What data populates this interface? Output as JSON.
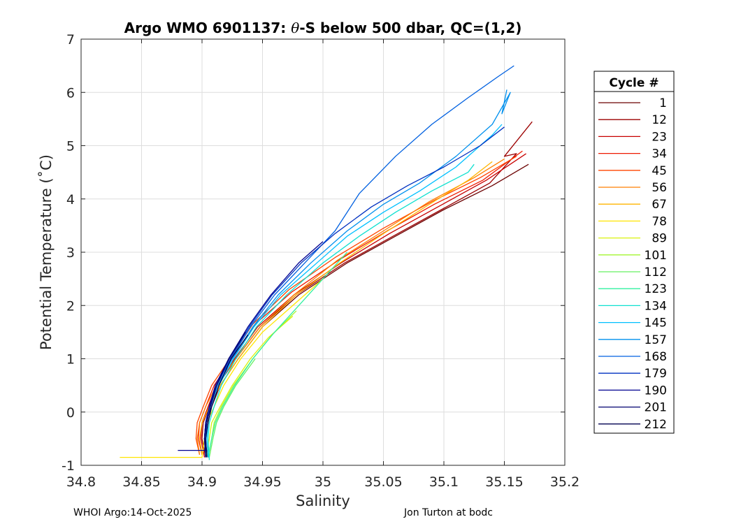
{
  "chart_data": {
    "type": "line",
    "title_prefix": "Argo WMO 6901137: ",
    "title_theta": "θ",
    "title_suffix": "-S below 500 dbar,  QC=(1,2)",
    "xlabel": "Salinity",
    "ylabel": "Potential Temperature (˚C)",
    "xlim": [
      34.8,
      35.2
    ],
    "ylim": [
      -1,
      7
    ],
    "xticks": [
      "34.8",
      "34.85",
      "34.9",
      "34.95",
      "35",
      "35.05",
      "35.1",
      "35.15",
      "35.2"
    ],
    "yticks": [
      "-1",
      "0",
      "1",
      "2",
      "3",
      "4",
      "5",
      "6",
      "7"
    ],
    "grid": true,
    "legend_title": "Cycle #",
    "legend_position": "right",
    "legend": [
      {
        "label": "1",
        "color": "#6b0000"
      },
      {
        "label": "12",
        "color": "#9c0000"
      },
      {
        "label": "23",
        "color": "#c80000"
      },
      {
        "label": "34",
        "color": "#ee1a00"
      },
      {
        "label": "45",
        "color": "#ff4400"
      },
      {
        "label": "56",
        "color": "#ff7f00"
      },
      {
        "label": "67",
        "color": "#ffb400"
      },
      {
        "label": "78",
        "color": "#ffe600"
      },
      {
        "label": "89",
        "color": "#d9f20d"
      },
      {
        "label": "101",
        "color": "#a3f530"
      },
      {
        "label": "112",
        "color": "#66f060"
      },
      {
        "label": "123",
        "color": "#30f0a0"
      },
      {
        "label": "134",
        "color": "#10e0d0"
      },
      {
        "label": "145",
        "color": "#00c0ff"
      },
      {
        "label": "157",
        "color": "#0090ee"
      },
      {
        "label": "168",
        "color": "#0060e0"
      },
      {
        "label": "179",
        "color": "#0030c0"
      },
      {
        "label": "190",
        "color": "#000090"
      },
      {
        "label": "201",
        "color": "#000070"
      },
      {
        "label": "212",
        "color": "#000050"
      }
    ],
    "series": [
      {
        "name": "1",
        "color": "#6b0000",
        "x": [
          34.905,
          34.902,
          34.903,
          34.908,
          34.915,
          34.93,
          34.95,
          34.98,
          35.02,
          35.06,
          35.1,
          35.14,
          35.17
        ],
        "y": [
          -0.85,
          -0.5,
          -0.2,
          0.1,
          0.5,
          1.0,
          1.6,
          2.2,
          2.8,
          3.3,
          3.8,
          4.25,
          4.65
        ]
      },
      {
        "name": "12",
        "color": "#9c0000",
        "x": [
          34.903,
          34.9,
          34.901,
          34.906,
          34.913,
          34.928,
          34.948,
          34.978,
          35.018,
          35.058,
          35.098,
          35.138,
          35.16,
          35.15,
          35.173
        ],
        "y": [
          -0.85,
          -0.5,
          -0.2,
          0.1,
          0.5,
          1.0,
          1.6,
          2.2,
          2.8,
          3.3,
          3.8,
          4.3,
          4.85,
          4.8,
          5.45
        ]
      },
      {
        "name": "23",
        "color": "#c80000",
        "x": [
          34.902,
          34.899,
          34.9,
          34.905,
          34.912,
          34.927,
          34.946,
          34.976,
          35.015,
          35.055,
          35.095,
          35.135,
          35.168
        ],
        "y": [
          -0.85,
          -0.5,
          -0.2,
          0.1,
          0.5,
          1.0,
          1.6,
          2.2,
          2.8,
          3.35,
          3.85,
          4.35,
          4.85
        ]
      },
      {
        "name": "34",
        "color": "#ee1a00",
        "x": [
          34.9,
          34.897,
          34.898,
          34.903,
          34.91,
          34.925,
          34.944,
          34.974,
          35.013,
          35.053,
          35.092,
          35.132,
          35.165
        ],
        "y": [
          -0.8,
          -0.5,
          -0.2,
          0.1,
          0.5,
          1.0,
          1.65,
          2.25,
          2.85,
          3.4,
          3.9,
          4.35,
          4.9
        ]
      },
      {
        "name": "45",
        "color": "#ff4400",
        "x": [
          34.898,
          34.895,
          34.896,
          34.901,
          34.908,
          34.923,
          34.942,
          34.972,
          35.01,
          35.05,
          35.09,
          35.13,
          35.16
        ],
        "y": [
          -0.8,
          -0.5,
          -0.2,
          0.1,
          0.5,
          1.0,
          1.65,
          2.3,
          2.9,
          3.45,
          3.95,
          4.4,
          4.8
        ]
      },
      {
        "name": "56",
        "color": "#ff7f00",
        "x": [
          34.898,
          34.896,
          34.898,
          34.903,
          34.912,
          34.928,
          34.948,
          34.976,
          35.012,
          35.05,
          35.088,
          35.125,
          35.15
        ],
        "y": [
          -0.8,
          -0.5,
          -0.2,
          0.1,
          0.5,
          1.0,
          1.6,
          2.2,
          2.85,
          3.4,
          3.95,
          4.4,
          4.75
        ]
      },
      {
        "name": "67",
        "color": "#ffb400",
        "x": [
          34.9,
          34.898,
          34.9,
          34.906,
          34.915,
          34.93,
          34.95,
          34.978,
          35.014,
          35.05,
          35.088,
          35.12,
          35.14
        ],
        "y": [
          -0.8,
          -0.5,
          -0.2,
          0.1,
          0.5,
          1.0,
          1.6,
          2.2,
          2.8,
          3.35,
          3.9,
          4.35,
          4.7
        ]
      },
      {
        "name": "78",
        "color": "#ffe600",
        "x": [
          34.832,
          34.9,
          34.902,
          34.904,
          34.91,
          34.918,
          34.932,
          34.95,
          34.975,
          35.0
        ],
        "y": [
          -0.85,
          -0.85,
          -0.5,
          -0.2,
          0.1,
          0.5,
          1.0,
          1.5,
          2.0,
          2.5
        ]
      },
      {
        "name": "89",
        "color": "#d9f20d",
        "x": [
          34.904,
          34.906,
          34.908,
          34.915,
          34.925,
          34.94,
          34.955,
          34.975
        ],
        "y": [
          -0.85,
          -0.5,
          -0.2,
          0.1,
          0.5,
          1.0,
          1.4,
          1.8
        ]
      },
      {
        "name": "101",
        "color": "#a3f530",
        "x": [
          34.905,
          34.908,
          34.91,
          34.916,
          34.926,
          34.942,
          34.958,
          34.978
        ],
        "y": [
          -0.85,
          -0.5,
          -0.2,
          0.1,
          0.5,
          1.0,
          1.45,
          1.9
        ]
      },
      {
        "name": "112",
        "color": "#66f060",
        "x": [
          34.906,
          34.909,
          34.912,
          34.918,
          34.928,
          34.944
        ],
        "y": [
          -0.85,
          -0.5,
          -0.2,
          0.1,
          0.5,
          1.0
        ]
      },
      {
        "name": "123",
        "color": "#30f0a0",
        "x": [
          34.905,
          34.908,
          34.911,
          34.917,
          34.927,
          34.942,
          34.96,
          34.98,
          35.0,
          35.02
        ],
        "y": [
          -0.85,
          -0.5,
          -0.2,
          0.1,
          0.5,
          1.0,
          1.5,
          2.0,
          2.5,
          3.0
        ]
      },
      {
        "name": "134",
        "color": "#10e0d0",
        "x": [
          34.906,
          34.905,
          34.906,
          34.91,
          34.916,
          34.928,
          34.945,
          34.97,
          35.0,
          35.03,
          35.06,
          35.09,
          35.12,
          35.125
        ],
        "y": [
          -0.9,
          -0.5,
          -0.2,
          0.1,
          0.5,
          1.0,
          1.6,
          2.2,
          2.8,
          3.3,
          3.75,
          4.15,
          4.5,
          4.65
        ]
      },
      {
        "name": "145",
        "color": "#00c0ff",
        "x": [
          34.905,
          34.904,
          34.905,
          34.908,
          34.914,
          34.926,
          34.943,
          34.965,
          34.995,
          35.02,
          35.05,
          35.08,
          35.11,
          35.14,
          35.148
        ],
        "y": [
          -0.85,
          -0.5,
          -0.2,
          0.1,
          0.5,
          1.0,
          1.6,
          2.2,
          2.8,
          3.3,
          3.75,
          4.15,
          4.6,
          5.2,
          5.4
        ]
      },
      {
        "name": "157",
        "color": "#0090ee",
        "x": [
          34.904,
          34.903,
          34.904,
          34.907,
          34.913,
          34.925,
          34.942,
          34.963,
          34.99,
          35.02,
          35.05,
          35.08,
          35.11,
          35.14,
          35.155,
          35.148,
          35.152
        ],
        "y": [
          -0.85,
          -0.5,
          -0.2,
          0.1,
          0.5,
          1.0,
          1.6,
          2.2,
          2.8,
          3.4,
          3.9,
          4.3,
          4.8,
          5.4,
          6.0,
          5.6,
          6.05
        ]
      },
      {
        "name": "168",
        "color": "#0060e0",
        "x": [
          34.903,
          34.902,
          34.903,
          34.906,
          34.912,
          34.924,
          34.94,
          34.96,
          34.985,
          35.01,
          35.03,
          35.06,
          35.09,
          35.12,
          35.145,
          35.158
        ],
        "y": [
          -0.85,
          -0.5,
          -0.2,
          0.1,
          0.5,
          1.0,
          1.6,
          2.2,
          2.8,
          3.4,
          4.1,
          4.8,
          5.4,
          5.9,
          6.3,
          6.5
        ]
      },
      {
        "name": "179",
        "color": "#0030c0",
        "x": [
          34.903,
          34.902,
          34.903,
          34.906,
          34.912,
          34.923,
          34.939,
          34.958,
          34.982,
          35.01,
          35.04,
          35.07,
          35.1,
          35.13,
          35.15
        ],
        "y": [
          -0.85,
          -0.5,
          -0.2,
          0.1,
          0.5,
          1.0,
          1.6,
          2.2,
          2.8,
          3.35,
          3.85,
          4.25,
          4.6,
          5.0,
          5.35
        ]
      },
      {
        "name": "190",
        "color": "#000090",
        "x": [
          34.88,
          34.903,
          34.902,
          34.903,
          34.906,
          34.911,
          34.922,
          34.938,
          34.957,
          34.98,
          35.0
        ],
        "y": [
          -0.72,
          -0.72,
          -0.5,
          -0.2,
          0.1,
          0.5,
          1.0,
          1.6,
          2.2,
          2.8,
          3.2
        ]
      },
      {
        "name": "201",
        "color": "#000070",
        "x": [
          34.903,
          34.902,
          34.904,
          34.907,
          34.912,
          34.922,
          34.936
        ],
        "y": [
          -0.85,
          -0.5,
          -0.2,
          0.1,
          0.5,
          1.0,
          1.5
        ]
      },
      {
        "name": "212",
        "color": "#000050",
        "x": [
          34.904,
          34.903,
          34.905,
          34.908,
          34.914,
          34.924,
          34.938
        ],
        "y": [
          -0.85,
          -0.5,
          -0.2,
          0.1,
          0.5,
          1.0,
          1.45
        ]
      }
    ]
  },
  "footer": {
    "left": "WHOI Argo:14-Oct-2025",
    "right": "Jon Turton at bodc"
  }
}
